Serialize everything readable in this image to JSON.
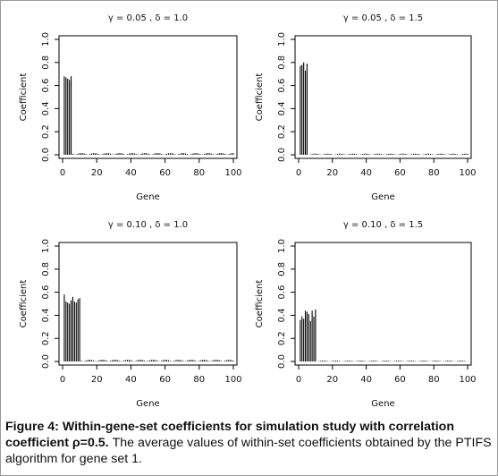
{
  "caption": {
    "bold": "Figure 4: Within-gene-set coefficients for simulation study with correlation coefficient ρ=0.5.",
    "text": " The average values of within-set coefficients obtained by the PTIFS algorithm for gene set 1."
  },
  "chart_data": [
    {
      "type": "bar",
      "title": "γ = 0.05 , δ = 1.0",
      "xlabel": "Gene",
      "ylabel": "Coefficient",
      "xlim": [
        0,
        100
      ],
      "ylim": [
        0,
        1
      ],
      "xticks": [
        "0",
        "20",
        "40",
        "60",
        "80",
        "100"
      ],
      "yticks": [
        "0.0",
        "0.2",
        "0.4",
        "0.6",
        "0.8",
        "1.0"
      ],
      "signal_genes": [
        1,
        2,
        3,
        4,
        5
      ],
      "signal_values": [
        0.68,
        0.67,
        0.66,
        0.65,
        0.68
      ],
      "noise_max": 0.015
    },
    {
      "type": "bar",
      "title": "γ = 0.05 , δ = 1.5",
      "xlabel": "Gene",
      "ylabel": "Coefficient",
      "xlim": [
        0,
        100
      ],
      "ylim": [
        0,
        1
      ],
      "xticks": [
        "0",
        "20",
        "40",
        "60",
        "80",
        "100"
      ],
      "yticks": [
        "0.0",
        "0.2",
        "0.4",
        "0.6",
        "0.8",
        "1.0"
      ],
      "signal_genes": [
        1,
        2,
        3,
        4,
        5
      ],
      "signal_values": [
        0.77,
        0.78,
        0.8,
        0.73,
        0.79
      ],
      "noise_max": 0.01
    },
    {
      "type": "bar",
      "title": "γ = 0.10 , δ = 1.0",
      "xlabel": "Gene",
      "ylabel": "Coefficient",
      "xlim": [
        0,
        100
      ],
      "ylim": [
        0,
        1
      ],
      "xticks": [
        "0",
        "20",
        "40",
        "60",
        "80",
        "100"
      ],
      "yticks": [
        "0.0",
        "0.2",
        "0.4",
        "0.6",
        "0.8",
        "1.0"
      ],
      "signal_genes": [
        1,
        2,
        3,
        4,
        5,
        6,
        7,
        8,
        9,
        10
      ],
      "signal_values": [
        0.58,
        0.52,
        0.51,
        0.5,
        0.53,
        0.56,
        0.52,
        0.51,
        0.54,
        0.55
      ],
      "noise_max": 0.015
    },
    {
      "type": "bar",
      "title": "γ = 0.10 , δ = 1.5",
      "xlabel": "Gene",
      "ylabel": "Coefficient",
      "xlim": [
        0,
        100
      ],
      "ylim": [
        0,
        1
      ],
      "xticks": [
        "0",
        "20",
        "40",
        "60",
        "80",
        "100"
      ],
      "yticks": [
        "0.0",
        "0.2",
        "0.4",
        "0.6",
        "0.8",
        "1.0"
      ],
      "signal_genes": [
        1,
        2,
        3,
        4,
        5,
        6,
        7,
        8,
        9,
        10
      ],
      "signal_values": [
        0.36,
        0.39,
        0.37,
        0.44,
        0.43,
        0.41,
        0.35,
        0.44,
        0.39,
        0.45
      ],
      "noise_max": 0.008
    }
  ]
}
